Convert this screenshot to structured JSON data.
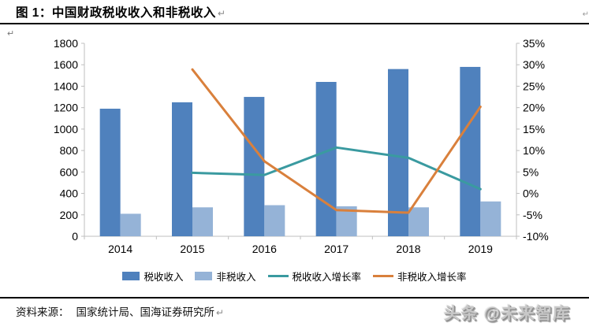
{
  "title": {
    "text": "图 1：中国财政税收收入和非税收入"
  },
  "marks": {
    "pilcrow": "↵"
  },
  "chart_data": {
    "type": "bar",
    "subtype": "combo-bar-line-dual-axis",
    "categories": [
      "2014",
      "2015",
      "2016",
      "2017",
      "2018",
      "2019"
    ],
    "series": [
      {
        "id": "tax-revenue",
        "name": "税收收入",
        "type": "bar",
        "axis": "left",
        "color": "#4F81BD",
        "values": [
          1190,
          1250,
          1300,
          1440,
          1560,
          1580
        ]
      },
      {
        "id": "nontax-revenue",
        "name": "非税收入",
        "type": "bar",
        "axis": "left",
        "color": "#95B3D7",
        "values": [
          210,
          270,
          290,
          280,
          270,
          325
        ]
      },
      {
        "id": "tax-revenue-growth",
        "name": "税收收入增长率",
        "type": "line",
        "axis": "right",
        "color": "#3A9AA0",
        "values": [
          null,
          4.8,
          4.3,
          10.7,
          8.3,
          1.0
        ]
      },
      {
        "id": "nontax-revenue-growth",
        "name": "非税收入增长率",
        "type": "line",
        "axis": "right",
        "color": "#D9803C",
        "values": [
          null,
          28.9,
          7.5,
          -3.9,
          -4.5,
          20.2
        ]
      }
    ],
    "left_axis": {
      "min": 0,
      "max": 1800,
      "step": 200,
      "labels": [
        "0",
        "200",
        "400",
        "600",
        "800",
        "1000",
        "1200",
        "1400",
        "1600",
        "1800"
      ]
    },
    "right_axis": {
      "min": -10,
      "max": 35,
      "step": 5,
      "labels": [
        "-10%",
        "-5%",
        "0%",
        "5%",
        "10%",
        "15%",
        "20%",
        "25%",
        "30%",
        "35%"
      ]
    },
    "legend_position": "bottom",
    "grid": false,
    "axis_color": "#BFBFBF"
  },
  "footer": {
    "label": "资料来源：",
    "text": "国家统计局、国海证券研究所"
  },
  "watermark": {
    "text": "头条 @未来智库"
  }
}
